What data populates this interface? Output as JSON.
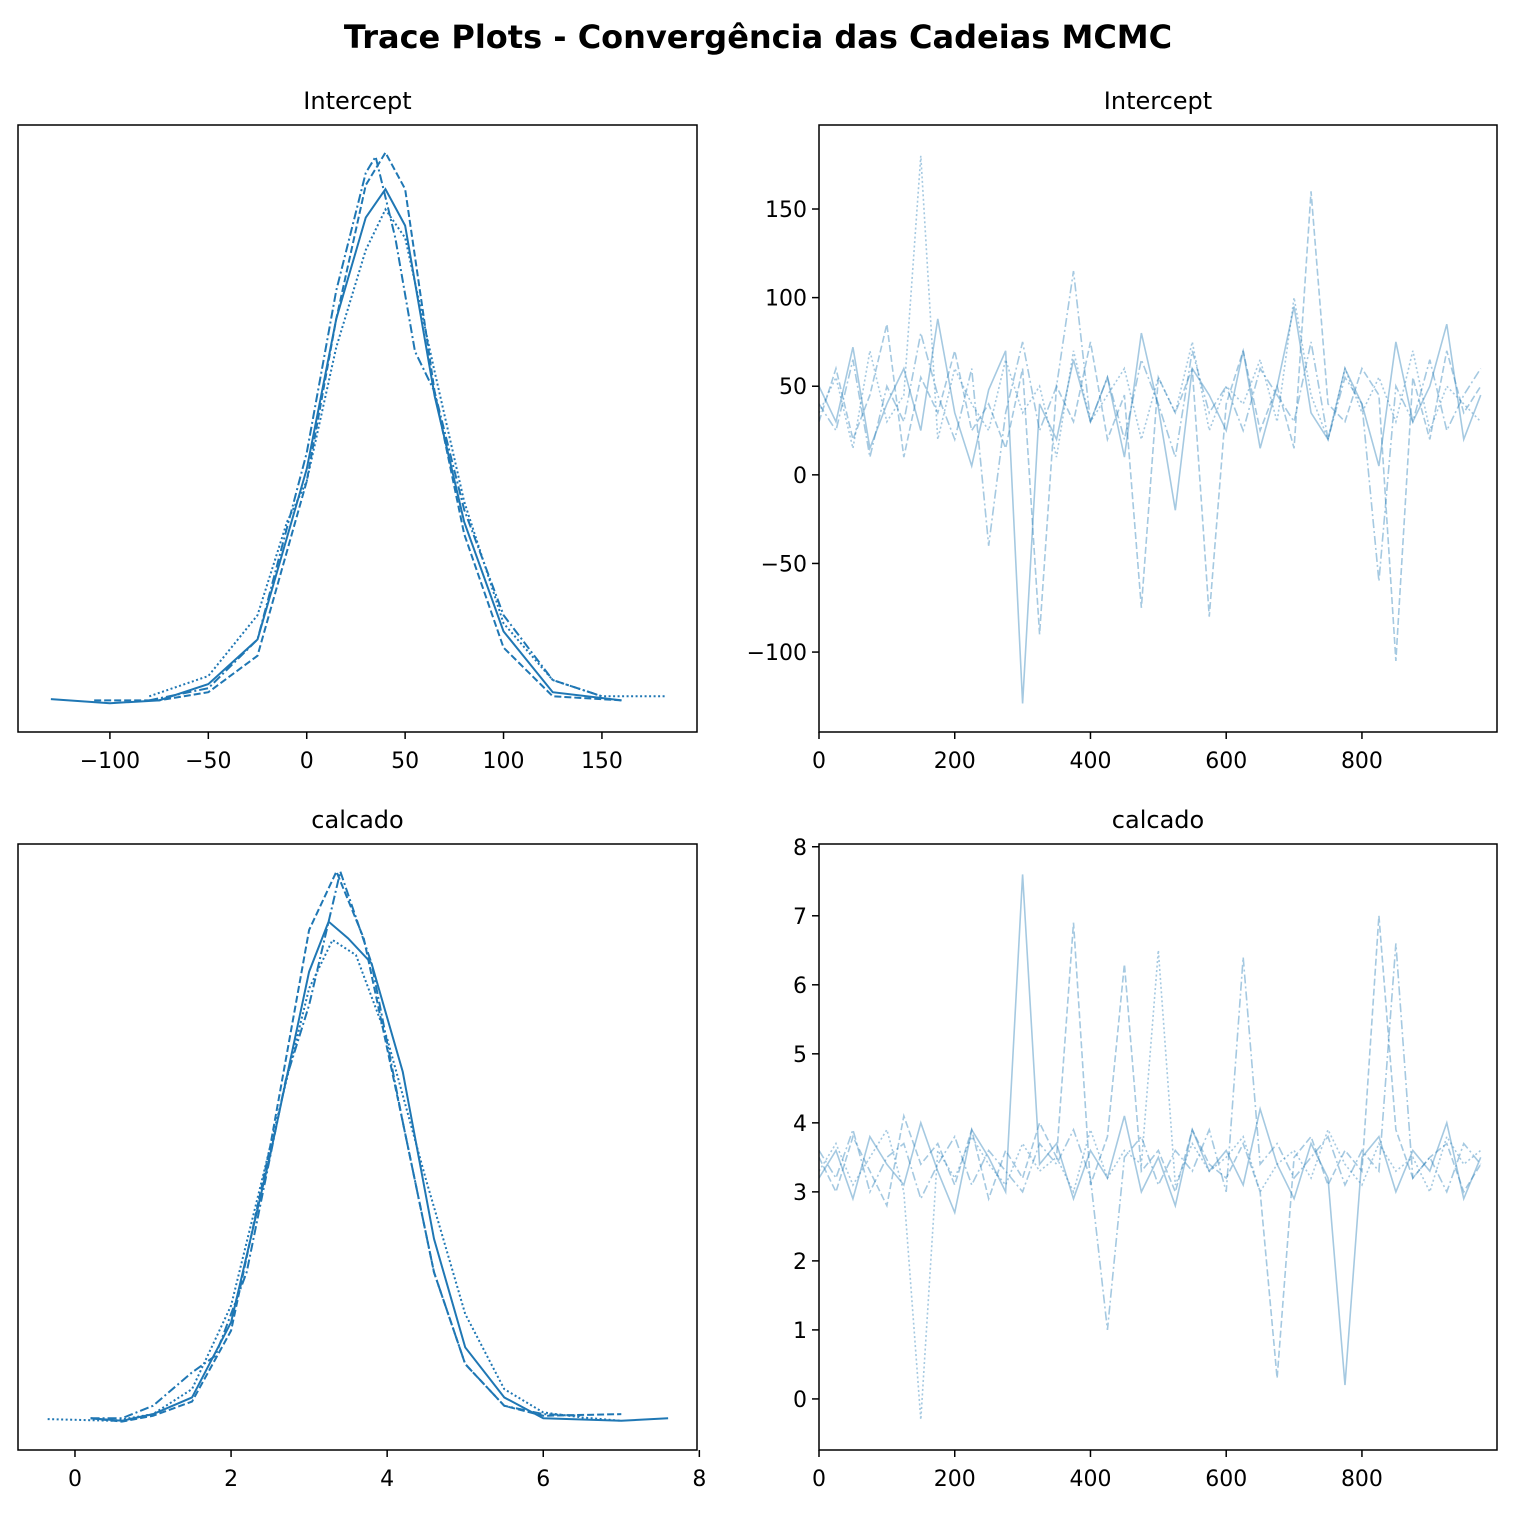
{
  "title": "Trace Plots - Convergência das Cadeias MCMC",
  "chart_data": [
    {
      "type": "line",
      "title": "Intercept",
      "xlim": [
        -146.7,
        198.3
      ],
      "ylim": [
        -0.00068,
        0.01428
      ],
      "xticks": [
        {
          "value": -100,
          "label": "−100"
        },
        {
          "value": -50,
          "label": "−50"
        },
        0,
        50,
        100,
        150
      ],
      "series": [
        {
          "color": "#1f77b4",
          "linestyle": "solid",
          "x": [
            -130,
            -100,
            -75,
            -50,
            -25,
            0,
            15,
            30,
            40,
            50,
            65,
            80,
            100,
            125,
            160
          ],
          "values": [
            0.00013,
            3e-05,
            0.0001,
            0.0005,
            0.0016,
            0.0058,
            0.0095,
            0.012,
            0.0127,
            0.0118,
            0.0076,
            0.0045,
            0.0018,
            0.0003,
            0.0001
          ]
        },
        {
          "color": "#1f77b4",
          "linestyle": "dashed",
          "x": [
            -108,
            -75,
            -50,
            -25,
            0,
            15,
            30,
            40,
            50,
            65,
            80,
            100,
            125,
            160
          ],
          "values": [
            0.0001,
            0.0001,
            0.0003,
            0.0012,
            0.0055,
            0.0095,
            0.0128,
            0.0136,
            0.0127,
            0.0077,
            0.0042,
            0.0014,
            0.0002,
            0.0001
          ]
        },
        {
          "color": "#1f77b4",
          "linestyle": "dashdot",
          "x": [
            -80,
            -50,
            -25,
            0,
            15,
            30,
            35,
            45,
            55,
            65,
            80,
            100,
            125,
            150
          ],
          "values": [
            0.0001,
            0.0004,
            0.0016,
            0.0062,
            0.0102,
            0.0131,
            0.0135,
            0.0115,
            0.0087,
            0.0077,
            0.0048,
            0.0022,
            0.0006,
            0.0002
          ]
        },
        {
          "color": "#1f77b4",
          "linestyle": "dotted",
          "x": [
            -80,
            -50,
            -25,
            -10,
            0,
            15,
            30,
            40,
            50,
            65,
            80,
            100,
            125,
            150,
            182
          ],
          "values": [
            0.0002,
            0.0007,
            0.0022,
            0.0045,
            0.0055,
            0.0088,
            0.0112,
            0.0122,
            0.0115,
            0.0082,
            0.005,
            0.002,
            0.0006,
            0.0002,
            0.0002
          ]
        }
      ]
    },
    {
      "type": "line",
      "title": "Intercept",
      "xlim": [
        0,
        999
      ],
      "ylim": [
        -145.1,
        197.4
      ],
      "xticks": [
        0,
        200,
        400,
        600,
        800
      ],
      "yticks": [
        {
          "value": -100,
          "label": "−100"
        },
        {
          "value": -50,
          "label": "−50"
        },
        0,
        50,
        100,
        150
      ],
      "x": [
        0,
        25,
        50,
        75,
        100,
        125,
        150,
        175,
        200,
        225,
        250,
        275,
        300,
        325,
        350,
        375,
        400,
        425,
        450,
        475,
        500,
        525,
        550,
        575,
        600,
        625,
        650,
        675,
        700,
        725,
        750,
        775,
        800,
        825,
        850,
        875,
        900,
        925,
        950,
        975
      ],
      "alpha": 0.4,
      "series": [
        {
          "color": "#1f77b4",
          "linestyle": "solid",
          "values": [
            50,
            30,
            72,
            15,
            40,
            60,
            25,
            88,
            35,
            5,
            48,
            70,
            -129,
            40,
            20,
            65,
            30,
            55,
            10,
            80,
            38,
            -20,
            60,
            45,
            25,
            70,
            15,
            50,
            95,
            35,
            20,
            60,
            40,
            5,
            75,
            30,
            50,
            85,
            20,
            45
          ]
        },
        {
          "color": "#1f77b4",
          "linestyle": "dashed",
          "values": [
            30,
            60,
            20,
            45,
            85,
            10,
            55,
            35,
            70,
            25,
            40,
            15,
            60,
            -90,
            50,
            30,
            75,
            20,
            45,
            -75,
            55,
            35,
            60,
            -80,
            40,
            70,
            25,
            50,
            15,
            160,
            40,
            30,
            60,
            45,
            -105,
            55,
            20,
            70,
            35,
            50
          ]
        },
        {
          "color": "#1f77b4",
          "linestyle": "dashdot",
          "values": [
            40,
            25,
            65,
            10,
            50,
            30,
            80,
            45,
            20,
            60,
            -40,
            35,
            75,
            25,
            50,
            115,
            30,
            55,
            20,
            65,
            40,
            10,
            70,
            35,
            50,
            25,
            60,
            45,
            30,
            75,
            20,
            55,
            40,
            -60,
            50,
            30,
            65,
            25,
            45,
            60
          ]
        },
        {
          "color": "#1f77b4",
          "linestyle": "dotted",
          "values": [
            35,
            55,
            15,
            70,
            30,
            45,
            180,
            20,
            60,
            40,
            25,
            65,
            35,
            50,
            10,
            70,
            30,
            45,
            60,
            20,
            55,
            35,
            75,
            25,
            50,
            40,
            65,
            30,
            100,
            45,
            20,
            60,
            35,
            55,
            30,
            70,
            25,
            50,
            40,
            30
          ]
        }
      ]
    },
    {
      "type": "line",
      "title": "calcado",
      "xlim": [
        -0.73,
        7.97
      ],
      "ylim": [
        -0.033,
        0.693
      ],
      "xticks": [
        0,
        2,
        4,
        6,
        8
      ],
      "series": [
        {
          "color": "#1f77b4",
          "linestyle": "solid",
          "x": [
            0.2,
            0.6,
            1.0,
            1.5,
            2.0,
            2.5,
            3.0,
            3.25,
            3.5,
            3.8,
            4.2,
            4.6,
            5.0,
            5.5,
            6.0,
            7.0,
            7.6
          ],
          "values": [
            0.005,
            0.002,
            0.01,
            0.03,
            0.12,
            0.32,
            0.54,
            0.6,
            0.58,
            0.55,
            0.42,
            0.22,
            0.09,
            0.03,
            0.005,
            0.002,
            0.005
          ]
        },
        {
          "color": "#1f77b4",
          "linestyle": "dashed",
          "x": [
            0.2,
            0.6,
            1.0,
            1.5,
            2.0,
            2.5,
            3.0,
            3.35,
            3.7,
            4.2,
            4.6,
            5.0,
            5.5,
            6.0,
            7.0
          ],
          "values": [
            0.005,
            0.001,
            0.008,
            0.025,
            0.11,
            0.33,
            0.59,
            0.66,
            0.58,
            0.36,
            0.18,
            0.07,
            0.02,
            0.008,
            0.01
          ]
        },
        {
          "color": "#1f77b4",
          "linestyle": "dashdot",
          "x": [
            0.2,
            0.6,
            1.0,
            1.5,
            1.8,
            2.2,
            2.7,
            3.0,
            3.4,
            3.8,
            4.2,
            4.6,
            5.0,
            5.5,
            6.0,
            6.5
          ],
          "values": [
            0.005,
            0.005,
            0.02,
            0.06,
            0.08,
            0.18,
            0.41,
            0.5,
            0.66,
            0.55,
            0.36,
            0.18,
            0.07,
            0.02,
            0.01,
            0.008
          ]
        },
        {
          "color": "#1f77b4",
          "linestyle": "dotted",
          "x": [
            -0.35,
            0.5,
            1.0,
            1.5,
            2.0,
            2.5,
            3.0,
            3.3,
            3.6,
            4.0,
            4.5,
            5.0,
            5.5,
            6.0,
            6.5,
            7.0
          ],
          "values": [
            0.004,
            0.002,
            0.01,
            0.04,
            0.14,
            0.33,
            0.52,
            0.578,
            0.56,
            0.46,
            0.29,
            0.13,
            0.04,
            0.012,
            0.006,
            0.002
          ]
        }
      ]
    },
    {
      "type": "line",
      "title": "calcado",
      "xlim": [
        0,
        999
      ],
      "ylim": [
        -0.74,
        8.04
      ],
      "xticks": [
        0,
        200,
        400,
        600,
        800
      ],
      "yticks": [
        0,
        1,
        2,
        3,
        4,
        5,
        6,
        7,
        8
      ],
      "x": [
        0,
        25,
        50,
        75,
        100,
        125,
        150,
        175,
        200,
        225,
        250,
        275,
        300,
        325,
        350,
        375,
        400,
        425,
        450,
        475,
        500,
        525,
        550,
        575,
        600,
        625,
        650,
        675,
        700,
        725,
        750,
        775,
        800,
        825,
        850,
        875,
        900,
        925,
        950,
        975
      ],
      "alpha": 0.4,
      "series": [
        {
          "color": "#1f77b4",
          "linestyle": "solid",
          "values": [
            3.2,
            3.6,
            2.9,
            3.8,
            3.4,
            3.1,
            4.0,
            3.3,
            2.7,
            3.9,
            3.5,
            3.0,
            7.6,
            3.4,
            3.7,
            2.9,
            3.6,
            3.2,
            4.1,
            3.0,
            3.5,
            2.8,
            3.9,
            3.3,
            3.6,
            3.1,
            4.2,
            3.4,
            2.9,
            3.7,
            3.2,
            0.2,
            3.5,
            3.8,
            3.0,
            3.6,
            3.3,
            4.0,
            2.9,
            3.5
          ]
        },
        {
          "color": "#1f77b4",
          "linestyle": "dashed",
          "values": [
            3.5,
            3.0,
            3.8,
            3.3,
            2.8,
            4.1,
            3.4,
            3.7,
            3.1,
            3.9,
            2.9,
            3.6,
            3.2,
            4.0,
            3.5,
            6.9,
            3.1,
            3.8,
            6.3,
            3.3,
            3.6,
            3.0,
            3.9,
            3.4,
            3.2,
            3.7,
            3.0,
            0.3,
            3.5,
            3.8,
            3.1,
            3.6,
            3.3,
            7.0,
            3.9,
            3.2,
            3.5,
            3.7,
            3.0,
            3.4
          ]
        },
        {
          "color": "#1f77b4",
          "linestyle": "dashdot",
          "values": [
            3.6,
            3.2,
            3.9,
            3.0,
            3.5,
            3.7,
            2.9,
            3.4,
            3.8,
            3.1,
            3.6,
            3.3,
            3.0,
            3.7,
            3.4,
            3.9,
            3.2,
            1.0,
            3.5,
            3.8,
            3.1,
            3.6,
            3.3,
            3.9,
            3.0,
            6.4,
            3.4,
            3.7,
            3.2,
            3.5,
            3.8,
            3.1,
            3.6,
            3.3,
            6.6,
            3.2,
            3.5,
            3.0,
            3.7,
            3.4
          ]
        },
        {
          "color": "#1f77b4",
          "linestyle": "dotted",
          "values": [
            3.3,
            3.7,
            3.1,
            3.5,
            3.9,
            3.0,
            -0.3,
            3.6,
            3.2,
            3.8,
            3.4,
            3.1,
            3.7,
            3.3,
            3.5,
            3.0,
            3.9,
            3.2,
            3.6,
            3.4,
            6.5,
            3.1,
            3.7,
            3.3,
            3.5,
            3.8,
            3.0,
            3.4,
            3.6,
            3.2,
            3.9,
            3.4,
            3.1,
            3.7,
            3.3,
            3.5,
            3.0,
            3.8,
            3.4,
            3.6
          ]
        }
      ]
    }
  ]
}
